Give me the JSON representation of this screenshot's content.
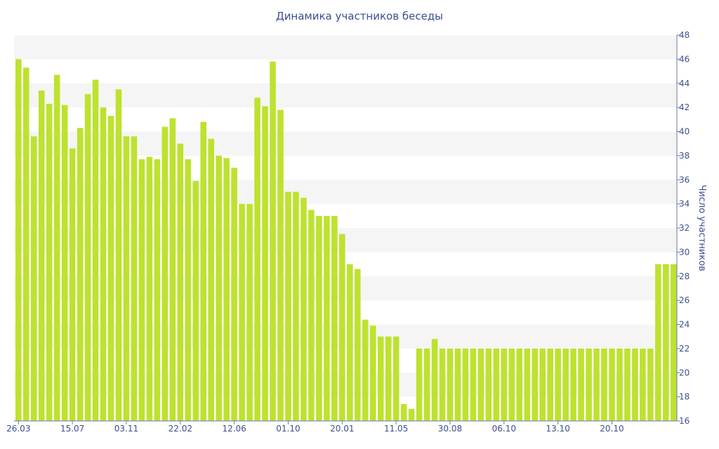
{
  "chart_data": {
    "type": "bar",
    "title": "Динамика участников беседы",
    "xlabel": "",
    "ylabel": "Число участников",
    "ylim": [
      16,
      48
    ],
    "y_ticks": [
      16,
      18,
      20,
      22,
      24,
      26,
      28,
      30,
      32,
      34,
      36,
      38,
      40,
      42,
      44,
      46,
      48
    ],
    "y_axis_side": "right",
    "grid": "alternating horizontal bands",
    "legend": "none",
    "x_tick_labels": [
      {
        "label": "26.03",
        "index": 0
      },
      {
        "label": "15.07",
        "index": 7
      },
      {
        "label": "03.11",
        "index": 14
      },
      {
        "label": "22.02",
        "index": 21
      },
      {
        "label": "12.06",
        "index": 28
      },
      {
        "label": "01.10",
        "index": 35
      },
      {
        "label": "20.01",
        "index": 42
      },
      {
        "label": "11.05",
        "index": 49
      },
      {
        "label": "30.08",
        "index": 56
      },
      {
        "label": "06.10",
        "index": 63
      },
      {
        "label": "13.10",
        "index": 70
      },
      {
        "label": "20.10",
        "index": 77
      }
    ],
    "series": [
      {
        "color": "#bde22f",
        "values": [
          46,
          45.3,
          39.6,
          43.4,
          42.3,
          44.7,
          42.2,
          38.6,
          40.3,
          43.1,
          44.3,
          42,
          41.3,
          43.5,
          39.6,
          39.6,
          37.7,
          37.9,
          37.7,
          40.4,
          41.1,
          39,
          37.7,
          35.9,
          40.8,
          39.4,
          38,
          37.8,
          37,
          34,
          34,
          42.8,
          42.1,
          45.8,
          41.8,
          35,
          35,
          34.5,
          33.5,
          33,
          33,
          33,
          31.5,
          29,
          28.6,
          24.4,
          23.9,
          23,
          23,
          23,
          17.4,
          17,
          22,
          22,
          22.8,
          22,
          22,
          22,
          22,
          22,
          22,
          22,
          22,
          22,
          22,
          22,
          22,
          22,
          22,
          22,
          22,
          22,
          22,
          22,
          22,
          22,
          22,
          22,
          22,
          22,
          22,
          22,
          22,
          29,
          29,
          29
        ]
      }
    ]
  },
  "colors": {
    "bar": "#bde22f",
    "text": "#3b4f8e",
    "band": "#f5f5f5",
    "axis": "#6a7aa8"
  }
}
